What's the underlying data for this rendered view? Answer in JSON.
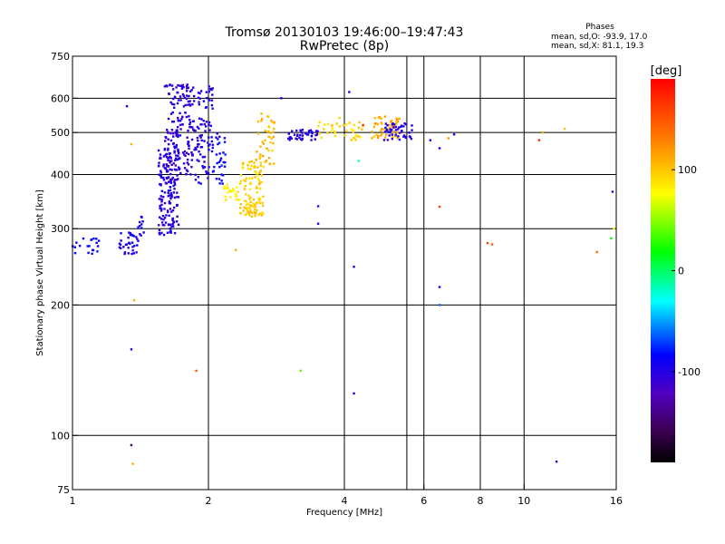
{
  "header": {
    "title": "Tromsø 20130103 19:46:00–19:47:43",
    "subtitle": "RwPretec (8p)"
  },
  "phase_info": {
    "heading": "Phases",
    "line_o": "mean, sd,O: -93.9, 17.0",
    "line_x": "mean, sd,X: 81.1, 19.3"
  },
  "colorbar": {
    "unit": "[deg]",
    "range": [
      -190,
      190
    ],
    "ticks": [
      {
        "value": 100,
        "label": "100"
      },
      {
        "value": 0,
        "label": "0"
      },
      {
        "value": -100,
        "label": "-100"
      }
    ]
  },
  "chart_data": {
    "type": "scatter",
    "title": "Tromsø 20130103 19:46:00–19:47:43",
    "subtitle": "RwPretec (8p)",
    "xlabel": "Frequency [MHz]",
    "ylabel": "Stationary phase Virtual Height [km]",
    "xscale": "log",
    "yscale": "log",
    "xlim": [
      1,
      16
    ],
    "ylim": [
      75,
      750
    ],
    "x_ticks": [
      {
        "value": 1,
        "label": "1"
      },
      {
        "value": 2,
        "label": "2"
      },
      {
        "value": 4,
        "label": "4"
      },
      {
        "value": 6,
        "label": "6"
      },
      {
        "value": 8,
        "label": "8"
      },
      {
        "value": 10,
        "label": "10"
      },
      {
        "value": 16,
        "label": "16"
      }
    ],
    "y_ticks": [
      {
        "value": 75,
        "label": "75"
      },
      {
        "value": 100,
        "label": "100"
      },
      {
        "value": 200,
        "label": "200"
      },
      {
        "value": 300,
        "label": "300"
      },
      {
        "value": 400,
        "label": "400"
      },
      {
        "value": 500,
        "label": "500"
      },
      {
        "value": 600,
        "label": "600"
      },
      {
        "value": 750,
        "label": "750"
      }
    ],
    "grid_x": [
      2,
      4,
      5.5,
      6,
      8,
      10
    ],
    "grid_y": [
      100,
      200,
      300,
      400,
      500,
      600
    ],
    "grid": true,
    "color_axis": "phase [deg]",
    "clusters": [
      {
        "x": [
          1.0,
          1.15
        ],
        "y": [
          262,
          285
        ],
        "phase": -90,
        "count": 20
      },
      {
        "x": [
          1.27,
          1.42
        ],
        "y": [
          262,
          295
        ],
        "phase": -95,
        "count": 35
      },
      {
        "x": [
          1.35,
          1.45
        ],
        "y": [
          285,
          320
        ],
        "phase": -88,
        "count": 12
      },
      {
        "x": [
          1.55,
          1.72
        ],
        "y": [
          290,
          460
        ],
        "phase": -103,
        "count": 160
      },
      {
        "x": [
          1.6,
          1.82
        ],
        "y": [
          400,
          650
        ],
        "phase": -106,
        "count": 150
      },
      {
        "x": [
          1.82,
          2.05
        ],
        "y": [
          380,
          640
        ],
        "phase": -100,
        "count": 110
      },
      {
        "x": [
          2.05,
          2.18
        ],
        "y": [
          380,
          500
        ],
        "phase": -85,
        "count": 30
      },
      {
        "x": [
          2.15,
          2.35
        ],
        "y": [
          345,
          380
        ],
        "phase": 82,
        "count": 25
      },
      {
        "x": [
          2.35,
          2.65
        ],
        "y": [
          320,
          430
        ],
        "phase": 95,
        "count": 110
      },
      {
        "x": [
          2.55,
          2.8
        ],
        "y": [
          420,
          560
        ],
        "phase": 105,
        "count": 45
      },
      {
        "x": [
          3.0,
          3.5
        ],
        "y": [
          480,
          510
        ],
        "phase": -100,
        "count": 40
      },
      {
        "x": [
          3.5,
          4.4
        ],
        "y": [
          480,
          530
        ],
        "phase": 92,
        "count": 40
      },
      {
        "x": [
          4.6,
          5.3
        ],
        "y": [
          485,
          545
        ],
        "phase": 108,
        "count": 50
      },
      {
        "x": [
          4.9,
          5.7
        ],
        "y": [
          480,
          530
        ],
        "phase": -100,
        "count": 45
      }
    ],
    "points": [
      {
        "x": 1.32,
        "y": 575,
        "phase": -100
      },
      {
        "x": 1.35,
        "y": 470,
        "phase": 110
      },
      {
        "x": 1.37,
        "y": 205,
        "phase": 110
      },
      {
        "x": 1.35,
        "y": 158,
        "phase": -105
      },
      {
        "x": 1.35,
        "y": 95,
        "phase": -150
      },
      {
        "x": 1.36,
        "y": 86,
        "phase": 110
      },
      {
        "x": 1.88,
        "y": 141,
        "phase": 150
      },
      {
        "x": 2.3,
        "y": 268,
        "phase": 110
      },
      {
        "x": 2.9,
        "y": 600,
        "phase": -90
      },
      {
        "x": 3.2,
        "y": 141,
        "phase": 40
      },
      {
        "x": 3.5,
        "y": 338,
        "phase": -100
      },
      {
        "x": 3.5,
        "y": 308,
        "phase": -100
      },
      {
        "x": 4.2,
        "y": 245,
        "phase": -100
      },
      {
        "x": 4.2,
        "y": 125,
        "phase": -100
      },
      {
        "x": 4.1,
        "y": 620,
        "phase": -100
      },
      {
        "x": 3.9,
        "y": 540,
        "phase": 95
      },
      {
        "x": 4.3,
        "y": 430,
        "phase": -20
      },
      {
        "x": 4.4,
        "y": 520,
        "phase": 170
      },
      {
        "x": 6.2,
        "y": 480,
        "phase": -100
      },
      {
        "x": 6.5,
        "y": 460,
        "phase": -90
      },
      {
        "x": 6.5,
        "y": 337,
        "phase": 160
      },
      {
        "x": 6.5,
        "y": 220,
        "phase": -100
      },
      {
        "x": 6.5,
        "y": 200,
        "phase": -60
      },
      {
        "x": 7.0,
        "y": 495,
        "phase": -100
      },
      {
        "x": 6.8,
        "y": 485,
        "phase": 120
      },
      {
        "x": 8.3,
        "y": 278,
        "phase": 160
      },
      {
        "x": 8.5,
        "y": 276,
        "phase": 150
      },
      {
        "x": 10.8,
        "y": 480,
        "phase": 170
      },
      {
        "x": 11.0,
        "y": 500,
        "phase": 110
      },
      {
        "x": 12.3,
        "y": 510,
        "phase": 100
      },
      {
        "x": 11.8,
        "y": 87,
        "phase": -100
      },
      {
        "x": 14.5,
        "y": 265,
        "phase": 140
      },
      {
        "x": 15.6,
        "y": 285,
        "phase": 20
      },
      {
        "x": 15.7,
        "y": 365,
        "phase": -100
      },
      {
        "x": 15.8,
        "y": 300,
        "phase": 80
      }
    ]
  }
}
